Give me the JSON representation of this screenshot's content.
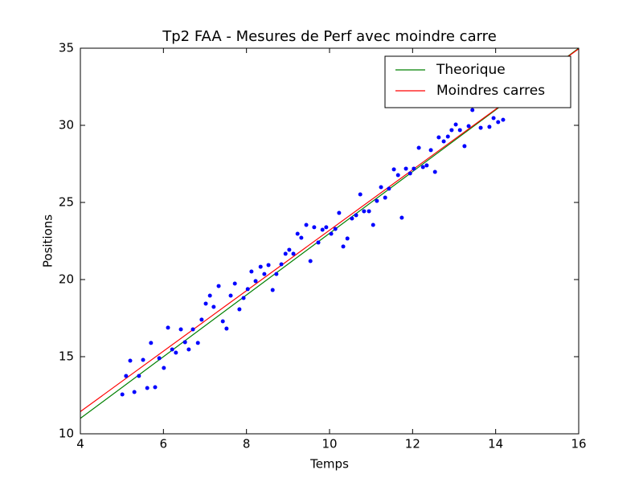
{
  "chart_data": {
    "type": "scatter",
    "title": "Tp2 FAA - Mesures de Perf avec moindre carre",
    "x_label": "Temps",
    "y_label": "Positions",
    "xlim": [
      4,
      16
    ],
    "ylim": [
      10,
      35
    ],
    "xticks": [
      4,
      6,
      8,
      10,
      12,
      14,
      16
    ],
    "yticks": [
      10,
      15,
      20,
      25,
      30,
      35
    ],
    "legend": "upper right",
    "series": [
      {
        "name": "Theorique",
        "type": "line",
        "color": "#008000",
        "x": [
          4,
          16
        ],
        "values": [
          11,
          35
        ]
      },
      {
        "name": "Moindres carres",
        "type": "line",
        "color": "#ff0000",
        "x": [
          4,
          16
        ],
        "values": [
          11.44,
          34.96
        ]
      },
      {
        "type": "scatter",
        "color": "#0000ff",
        "x": [
          5.01,
          5.1,
          5.2,
          5.3,
          5.41,
          5.51,
          5.61,
          5.7,
          5.8,
          5.9,
          6.01,
          6.11,
          6.21,
          6.3,
          6.42,
          6.52,
          6.61,
          6.71,
          6.83,
          6.92,
          7.02,
          7.12,
          7.21,
          7.33,
          7.43,
          7.52,
          7.62,
          7.72,
          7.83,
          7.93,
          8.03,
          8.12,
          8.22,
          8.34,
          8.43,
          8.53,
          8.63,
          8.72,
          8.84,
          8.94,
          9.03,
          9.13,
          9.23,
          9.32,
          9.44,
          9.54,
          9.63,
          9.73,
          9.83,
          9.92,
          10.04,
          10.14,
          10.23,
          10.33,
          10.43,
          10.54,
          10.64,
          10.74,
          10.83,
          10.95,
          11.05,
          11.14,
          11.24,
          11.34,
          11.43,
          11.55,
          11.65,
          11.74,
          11.84,
          11.94,
          12.03,
          12.15,
          12.25,
          12.34,
          12.44,
          12.54,
          12.63,
          12.75,
          12.85,
          12.94,
          13.04,
          13.14,
          13.25,
          13.35,
          13.44,
          13.64,
          13.85,
          13.95,
          14.06,
          14.18
        ],
        "values": [
          12.55,
          13.75,
          14.74,
          12.71,
          13.75,
          14.79,
          12.97,
          15.89,
          13.02,
          14.9,
          14.27,
          16.88,
          15.47,
          15.26,
          16.77,
          15.94,
          15.47,
          16.77,
          15.89,
          17.4,
          18.44,
          18.96,
          18.23,
          19.58,
          17.29,
          16.82,
          18.96,
          19.74,
          18.07,
          18.8,
          19.38,
          20.52,
          19.9,
          20.83,
          20.36,
          20.94,
          19.32,
          20.36,
          20.99,
          21.67,
          21.93,
          21.67,
          22.97,
          22.71,
          23.54,
          21.2,
          23.39,
          22.4,
          23.23,
          23.39,
          22.97,
          23.28,
          24.32,
          22.14,
          22.66,
          23.96,
          24.17,
          25.52,
          24.43,
          24.43,
          23.54,
          25.1,
          25.99,
          25.31,
          25.89,
          27.14,
          26.77,
          24.01,
          27.19,
          26.88,
          27.19,
          28.54,
          27.29,
          27.4,
          28.39,
          26.98,
          29.22,
          28.96,
          29.27,
          29.69,
          30.05,
          29.69,
          28.65,
          29.95,
          30.99,
          29.84,
          29.9,
          30.47,
          30.21,
          30.36
        ]
      }
    ]
  }
}
